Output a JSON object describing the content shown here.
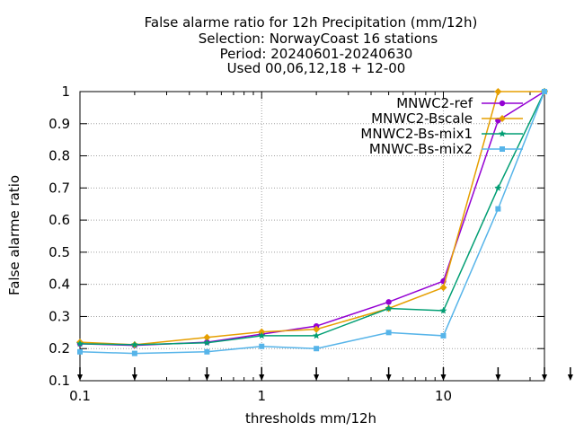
{
  "chart_data": {
    "type": "line",
    "title_lines": [
      "False alarme ratio  for 12h Precipitation (mm/12h)",
      "Selection: NorwayCoast     16 stations",
      "Period: 20240601-20240630",
      "Used 00,06,12,18 + 12-00"
    ],
    "xlabel": "thresholds mm/12h",
    "ylabel": "False alarme ratio",
    "x_scale": "log",
    "xlim": [
      0.1,
      36
    ],
    "ylim": [
      0.1,
      1
    ],
    "x_ticks": [
      {
        "value": 0.1,
        "label": "0.1"
      },
      {
        "value": 1,
        "label": "1"
      },
      {
        "value": 10,
        "label": "10"
      }
    ],
    "y_ticks": [
      {
        "value": 0.1,
        "label": "0.1"
      },
      {
        "value": 0.2,
        "label": "0.2"
      },
      {
        "value": 0.3,
        "label": "0.3"
      },
      {
        "value": 0.4,
        "label": "0.4"
      },
      {
        "value": 0.5,
        "label": "0.5"
      },
      {
        "value": 0.6,
        "label": "0.6"
      },
      {
        "value": 0.7,
        "label": "0.7"
      },
      {
        "value": 0.8,
        "label": "0.8"
      },
      {
        "value": 0.9,
        "label": "0.9"
      },
      {
        "value": 1,
        "label": "1"
      }
    ],
    "grid": true,
    "legend_position": "top-right",
    "threshold_markers": [
      0.1,
      0.2,
      0.5,
      1,
      2,
      5,
      10,
      20,
      36,
      50
    ],
    "x": [
      0.1,
      0.2,
      0.5,
      1,
      2,
      5,
      10,
      20,
      36
    ],
    "series": [
      {
        "name": "MNWC2-ref",
        "color": "#9400d3",
        "marker": "circle",
        "values": [
          0.215,
          0.21,
          0.22,
          0.245,
          0.27,
          0.345,
          0.41,
          0.91,
          1.0
        ]
      },
      {
        "name": "MNWC2-Bscale",
        "color": "#e69f00",
        "marker": "diamond",
        "values": [
          0.22,
          0.212,
          0.235,
          0.252,
          0.26,
          0.325,
          0.39,
          1.0,
          1.0
        ]
      },
      {
        "name": "MNWC2-Bs-mix1",
        "color": "#009e73",
        "marker": "star",
        "values": [
          0.215,
          0.212,
          0.218,
          0.24,
          0.24,
          0.325,
          0.318,
          0.7,
          1.0
        ]
      },
      {
        "name": "MNWC-Bs-mix2",
        "color": "#56b4e9",
        "marker": "square",
        "values": [
          0.19,
          0.185,
          0.19,
          0.207,
          0.2,
          0.25,
          0.24,
          0.635,
          1.0
        ]
      }
    ]
  }
}
